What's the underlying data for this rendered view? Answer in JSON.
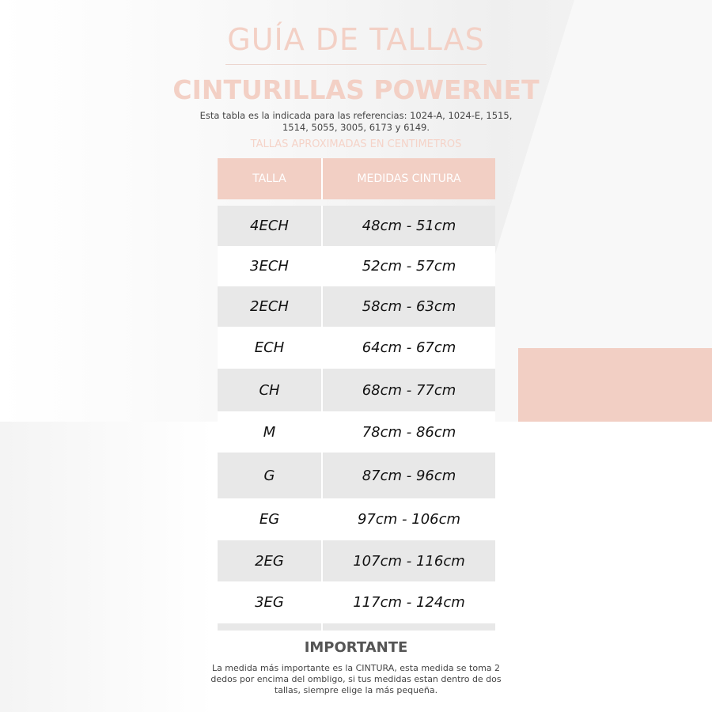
{
  "title": "GUÍA DE TALLAS",
  "subtitle": "CINTURILLAS POWERNET",
  "description": "Esta tabla es la indicada para las referencias: 1024-A, 1024-E, 1515, 1514, 5055, 3005, 6173 y 6149.",
  "units_note": "TALLAS APROXIMADAS EN CENTIMETROS",
  "table": {
    "headers": [
      "TALLA",
      "MEDIDAS CINTURA"
    ],
    "rows": [
      [
        "4ECH",
        "48cm - 51cm"
      ],
      [
        "3ECH",
        "52cm - 57cm"
      ],
      [
        "2ECH",
        "58cm - 63cm"
      ],
      [
        "ECH",
        "64cm - 67cm"
      ],
      [
        "CH",
        "68cm - 77cm"
      ],
      [
        "M",
        "78cm - 86cm"
      ],
      [
        "G",
        "87cm - 96cm"
      ],
      [
        "EG",
        "97cm - 106cm"
      ],
      [
        "2EG",
        "107cm - 116cm"
      ],
      [
        "3EG",
        "117cm - 124cm"
      ]
    ]
  },
  "important": {
    "heading": "IMPORTANTE",
    "text": "La medida más importante es la CINTURA, esta medida se toma 2 dedos por encima del ombligo, si tus medidas estan dentro de dos tallas, siempre elige la más pequeña."
  },
  "colors": {
    "accent": "#f2cfc4",
    "row_gray": "#e8e8e8"
  }
}
